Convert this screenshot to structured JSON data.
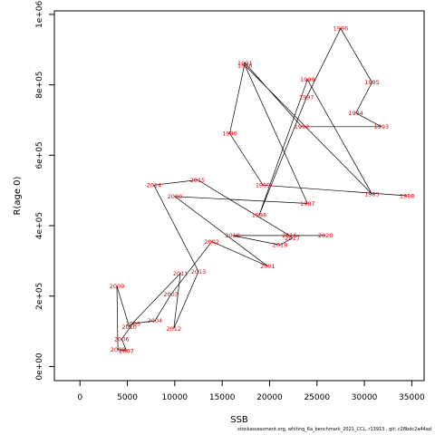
{
  "chart_data": {
    "type": "line",
    "xlabel": "SSB",
    "ylabel": "R(age 0)",
    "xlim": [
      -2700,
      36300
    ],
    "ylim": [
      -40000,
      1010000
    ],
    "x_ticks": [
      0,
      5000,
      10000,
      15000,
      20000,
      25000,
      30000,
      35000
    ],
    "x_tick_labels": [
      "0",
      "5000",
      "10000",
      "15000",
      "20000",
      "25000",
      "30000",
      "35000"
    ],
    "y_ticks": [
      0,
      200000,
      400000,
      600000,
      800000,
      1000000
    ],
    "y_tick_labels": [
      "0e+00",
      "2e+05",
      "4e+05",
      "6e+05",
      "8e+05",
      "1e+06"
    ],
    "grid": false,
    "line_color": "#000000",
    "label_color": "#e8000b",
    "series": [
      {
        "points": [
          {
            "year": "1988",
            "ssb": 34500,
            "rec": 485000
          },
          {
            "year": "1989",
            "ssb": 19300,
            "rec": 515000
          },
          {
            "year": "1990",
            "ssb": 15800,
            "rec": 662000
          },
          {
            "year": "1991",
            "ssb": 17400,
            "rec": 862000
          },
          {
            "year": "1992",
            "ssb": 23400,
            "rec": 681000
          },
          {
            "year": "1993",
            "ssb": 31800,
            "rec": 681000
          },
          {
            "year": "1994",
            "ssb": 29100,
            "rec": 720000
          },
          {
            "year": "1995",
            "ssb": 30800,
            "rec": 807000
          },
          {
            "year": "1996",
            "ssb": 27500,
            "rec": 960000
          },
          {
            "year": "1997",
            "ssb": 23900,
            "rec": 765000
          },
          {
            "year": "1998",
            "ssb": 18900,
            "rec": 430000
          },
          {
            "year": "1999",
            "ssb": 24000,
            "rec": 815000
          },
          {
            "year": "1985",
            "ssb": 30800,
            "rec": 490000
          },
          {
            "year": "1986",
            "ssb": 17400,
            "rec": 855000
          },
          {
            "year": "1987",
            "ssb": 24000,
            "rec": 463000
          },
          {
            "year": "2000",
            "ssb": 10000,
            "rec": 483000
          },
          {
            "year": "2001",
            "ssb": 19800,
            "rec": 285000
          },
          {
            "year": "2002",
            "ssb": 13900,
            "rec": 355000
          },
          {
            "year": "2003",
            "ssb": 9600,
            "rec": 205000
          },
          {
            "year": "2004",
            "ssb": 7900,
            "rec": 130000
          },
          {
            "year": "2005",
            "ssb": 5600,
            "rec": 122000
          },
          {
            "year": "2006",
            "ssb": 4400,
            "rec": 78000
          },
          {
            "year": "2007",
            "ssb": 4900,
            "rec": 45000
          },
          {
            "year": "2008",
            "ssb": 4000,
            "rec": 48000
          },
          {
            "year": "2009",
            "ssb": 3900,
            "rec": 228000
          },
          {
            "year": "2010",
            "ssb": 5200,
            "rec": 113000
          },
          {
            "year": "2011",
            "ssb": 10600,
            "rec": 265000
          },
          {
            "year": "2012",
            "ssb": 9900,
            "rec": 108000
          },
          {
            "year": "2013",
            "ssb": 12500,
            "rec": 270000
          },
          {
            "year": "2014",
            "ssb": 7800,
            "rec": 515000
          },
          {
            "year": "2015",
            "ssb": 12400,
            "rec": 530000
          },
          {
            "year": "2016",
            "ssb": 22100,
            "rec": 372000
          },
          {
            "year": "2017",
            "ssb": 22400,
            "rec": 365000
          },
          {
            "year": "2018",
            "ssb": 21100,
            "rec": 345000
          },
          {
            "year": "2019",
            "ssb": 16100,
            "rec": 372000
          },
          {
            "year": "2020",
            "ssb": 25900,
            "rec": 372000
          }
        ]
      }
    ]
  },
  "footer": "stockassessment.org,  whiting_6a_benchmark_2021_CCL, r13913 ,  git: c28bdc2a44ad"
}
